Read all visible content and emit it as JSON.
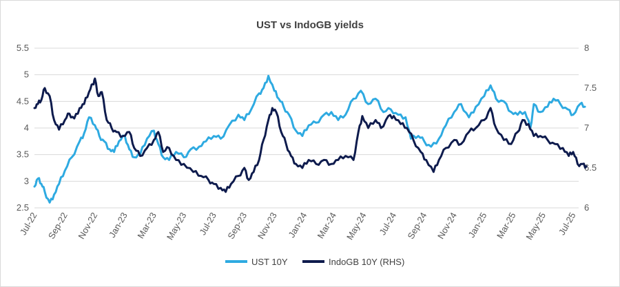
{
  "chart_data": {
    "type": "line",
    "title": "UST vs IndoGB yields",
    "xlabel": "",
    "ylabel": "",
    "x_ticks": [
      "Jul-22",
      "Sep-22",
      "Nov-22",
      "Jan-23",
      "Mar-23",
      "May-23",
      "Jul-23",
      "Sep-23",
      "Nov-23",
      "Jan-24",
      "Mar-24",
      "May-24",
      "Jul-24",
      "Sep-24",
      "Nov-24",
      "Jan-25",
      "Mar-25",
      "May-25",
      "Jul-25"
    ],
    "y_left": {
      "ticks": [
        "2.5",
        "3",
        "3.5",
        "4",
        "4.5",
        "5",
        "5.5"
      ],
      "ylim": [
        2.5,
        5.5
      ]
    },
    "y_right": {
      "ticks": [
        "6",
        "6.5",
        "7",
        "7.5",
        "8"
      ],
      "ylim": [
        6,
        8
      ]
    },
    "grid": true,
    "legend_position": "bottom",
    "series": [
      {
        "name": "UST 10Y",
        "axis": "left",
        "color": "#2eaae1",
        "points": [
          [
            "2022-07-01",
            2.9
          ],
          [
            "2022-07-08",
            3.05
          ],
          [
            "2022-07-15",
            2.95
          ],
          [
            "2022-07-22",
            2.8
          ],
          [
            "2022-08-01",
            2.6
          ],
          [
            "2022-08-10",
            2.75
          ],
          [
            "2022-08-20",
            2.95
          ],
          [
            "2022-09-01",
            3.2
          ],
          [
            "2022-09-15",
            3.45
          ],
          [
            "2022-10-01",
            3.75
          ],
          [
            "2022-10-10",
            3.9
          ],
          [
            "2022-10-20",
            4.2
          ],
          [
            "2022-11-01",
            4.05
          ],
          [
            "2022-11-10",
            3.85
          ],
          [
            "2022-11-20",
            3.75
          ],
          [
            "2022-12-01",
            3.6
          ],
          [
            "2022-12-10",
            3.55
          ],
          [
            "2022-12-20",
            3.75
          ],
          [
            "2023-01-01",
            3.85
          ],
          [
            "2023-01-10",
            3.6
          ],
          [
            "2023-01-20",
            3.45
          ],
          [
            "2023-02-01",
            3.5
          ],
          [
            "2023-02-15",
            3.8
          ],
          [
            "2023-03-01",
            3.95
          ],
          [
            "2023-03-10",
            3.7
          ],
          [
            "2023-03-20",
            3.45
          ],
          [
            "2023-04-01",
            3.4
          ],
          [
            "2023-04-15",
            3.55
          ],
          [
            "2023-05-01",
            3.45
          ],
          [
            "2023-05-15",
            3.6
          ],
          [
            "2023-06-01",
            3.65
          ],
          [
            "2023-06-15",
            3.75
          ],
          [
            "2023-07-01",
            3.85
          ],
          [
            "2023-07-15",
            3.8
          ],
          [
            "2023-08-01",
            4.05
          ],
          [
            "2023-08-20",
            4.25
          ],
          [
            "2023-09-01",
            4.15
          ],
          [
            "2023-09-15",
            4.35
          ],
          [
            "2023-10-01",
            4.65
          ],
          [
            "2023-10-10",
            4.75
          ],
          [
            "2023-10-20",
            4.98
          ],
          [
            "2023-11-01",
            4.7
          ],
          [
            "2023-11-10",
            4.55
          ],
          [
            "2023-11-20",
            4.4
          ],
          [
            "2023-12-01",
            4.25
          ],
          [
            "2023-12-15",
            3.95
          ],
          [
            "2023-12-28",
            3.85
          ],
          [
            "2024-01-10",
            4.05
          ],
          [
            "2024-01-25",
            4.1
          ],
          [
            "2024-02-10",
            4.25
          ],
          [
            "2024-02-25",
            4.3
          ],
          [
            "2024-03-10",
            4.15
          ],
          [
            "2024-03-25",
            4.25
          ],
          [
            "2024-04-10",
            4.55
          ],
          [
            "2024-04-25",
            4.7
          ],
          [
            "2024-05-10",
            4.45
          ],
          [
            "2024-05-25",
            4.55
          ],
          [
            "2024-06-10",
            4.3
          ],
          [
            "2024-06-25",
            4.35
          ],
          [
            "2024-07-10",
            4.25
          ],
          [
            "2024-07-25",
            4.2
          ],
          [
            "2024-08-05",
            3.8
          ],
          [
            "2024-08-20",
            3.85
          ],
          [
            "2024-09-01",
            3.75
          ],
          [
            "2024-09-15",
            3.65
          ],
          [
            "2024-10-01",
            3.8
          ],
          [
            "2024-10-15",
            4.05
          ],
          [
            "2024-11-01",
            4.3
          ],
          [
            "2024-11-15",
            4.45
          ],
          [
            "2024-12-01",
            4.2
          ],
          [
            "2024-12-15",
            4.4
          ],
          [
            "2025-01-01",
            4.6
          ],
          [
            "2025-01-14",
            4.8
          ],
          [
            "2025-01-25",
            4.55
          ],
          [
            "2025-02-10",
            4.5
          ],
          [
            "2025-02-25",
            4.3
          ],
          [
            "2025-03-10",
            4.25
          ],
          [
            "2025-03-25",
            4.3
          ],
          [
            "2025-04-05",
            4.0
          ],
          [
            "2025-04-12",
            4.45
          ],
          [
            "2025-04-25",
            4.3
          ],
          [
            "2025-05-10",
            4.4
          ],
          [
            "2025-05-22",
            4.55
          ],
          [
            "2025-06-05",
            4.45
          ],
          [
            "2025-06-20",
            4.35
          ],
          [
            "2025-07-01",
            4.25
          ],
          [
            "2025-07-15",
            4.45
          ],
          [
            "2025-07-25",
            4.4
          ]
        ]
      },
      {
        "name": "IndoGB 10Y (RHS)",
        "axis": "right",
        "color": "#0e1b4d",
        "points": [
          [
            "2022-07-01",
            7.25
          ],
          [
            "2022-07-08",
            7.3
          ],
          [
            "2022-07-15",
            7.35
          ],
          [
            "2022-07-22",
            7.5
          ],
          [
            "2022-08-01",
            7.4
          ],
          [
            "2022-08-10",
            7.1
          ],
          [
            "2022-08-20",
            6.98
          ],
          [
            "2022-09-01",
            7.1
          ],
          [
            "2022-09-10",
            7.18
          ],
          [
            "2022-09-20",
            7.12
          ],
          [
            "2022-10-01",
            7.25
          ],
          [
            "2022-10-10",
            7.3
          ],
          [
            "2022-10-20",
            7.45
          ],
          [
            "2022-10-28",
            7.55
          ],
          [
            "2022-11-01",
            7.62
          ],
          [
            "2022-11-08",
            7.4
          ],
          [
            "2022-11-15",
            7.45
          ],
          [
            "2022-11-25",
            7.1
          ],
          [
            "2022-12-05",
            7.0
          ],
          [
            "2022-12-15",
            6.95
          ],
          [
            "2022-12-28",
            6.9
          ],
          [
            "2023-01-10",
            6.95
          ],
          [
            "2023-01-20",
            6.75
          ],
          [
            "2023-02-01",
            6.65
          ],
          [
            "2023-02-15",
            6.75
          ],
          [
            "2023-03-01",
            6.85
          ],
          [
            "2023-03-10",
            6.95
          ],
          [
            "2023-03-20",
            6.7
          ],
          [
            "2023-04-01",
            6.75
          ],
          [
            "2023-04-15",
            6.6
          ],
          [
            "2023-05-01",
            6.55
          ],
          [
            "2023-05-20",
            6.45
          ],
          [
            "2023-06-05",
            6.4
          ],
          [
            "2023-06-20",
            6.35
          ],
          [
            "2023-07-01",
            6.3
          ],
          [
            "2023-07-15",
            6.25
          ],
          [
            "2023-07-25",
            6.2
          ],
          [
            "2023-08-05",
            6.3
          ],
          [
            "2023-08-20",
            6.4
          ],
          [
            "2023-09-01",
            6.5
          ],
          [
            "2023-09-10",
            6.35
          ],
          [
            "2023-09-20",
            6.45
          ],
          [
            "2023-10-01",
            6.6
          ],
          [
            "2023-10-10",
            6.85
          ],
          [
            "2023-10-20",
            7.1
          ],
          [
            "2023-10-28",
            7.25
          ],
          [
            "2023-11-05",
            7.2
          ],
          [
            "2023-11-15",
            6.95
          ],
          [
            "2023-11-25",
            6.8
          ],
          [
            "2023-12-05",
            6.65
          ],
          [
            "2023-12-15",
            6.55
          ],
          [
            "2023-12-28",
            6.5
          ],
          [
            "2024-01-10",
            6.6
          ],
          [
            "2024-01-25",
            6.55
          ],
          [
            "2024-02-10",
            6.6
          ],
          [
            "2024-02-25",
            6.55
          ],
          [
            "2024-03-10",
            6.6
          ],
          [
            "2024-03-25",
            6.65
          ],
          [
            "2024-04-10",
            6.6
          ],
          [
            "2024-04-20",
            6.95
          ],
          [
            "2024-04-28",
            7.15
          ],
          [
            "2024-05-10",
            7.0
          ],
          [
            "2024-05-25",
            7.1
          ],
          [
            "2024-06-05",
            7.0
          ],
          [
            "2024-06-20",
            7.15
          ],
          [
            "2024-07-01",
            7.15
          ],
          [
            "2024-07-15",
            7.05
          ],
          [
            "2024-07-28",
            7.0
          ],
          [
            "2024-08-10",
            6.85
          ],
          [
            "2024-08-25",
            6.7
          ],
          [
            "2024-09-05",
            6.6
          ],
          [
            "2024-09-20",
            6.45
          ],
          [
            "2024-10-01",
            6.6
          ],
          [
            "2024-10-15",
            6.75
          ],
          [
            "2024-11-01",
            6.85
          ],
          [
            "2024-11-15",
            6.8
          ],
          [
            "2024-12-01",
            6.95
          ],
          [
            "2024-12-15",
            7.0
          ],
          [
            "2025-01-01",
            7.1
          ],
          [
            "2025-01-14",
            7.25
          ],
          [
            "2025-01-25",
            7.0
          ],
          [
            "2025-02-10",
            6.85
          ],
          [
            "2025-02-25",
            6.8
          ],
          [
            "2025-03-10",
            6.95
          ],
          [
            "2025-03-20",
            7.1
          ],
          [
            "2025-04-01",
            7.05
          ],
          [
            "2025-04-12",
            6.9
          ],
          [
            "2025-04-25",
            6.9
          ],
          [
            "2025-05-10",
            6.85
          ],
          [
            "2025-05-25",
            6.8
          ],
          [
            "2025-06-10",
            6.75
          ],
          [
            "2025-06-22",
            6.65
          ],
          [
            "2025-07-01",
            6.7
          ],
          [
            "2025-07-10",
            6.55
          ],
          [
            "2025-07-20",
            6.55
          ],
          [
            "2025-07-28",
            6.52
          ]
        ]
      }
    ]
  }
}
